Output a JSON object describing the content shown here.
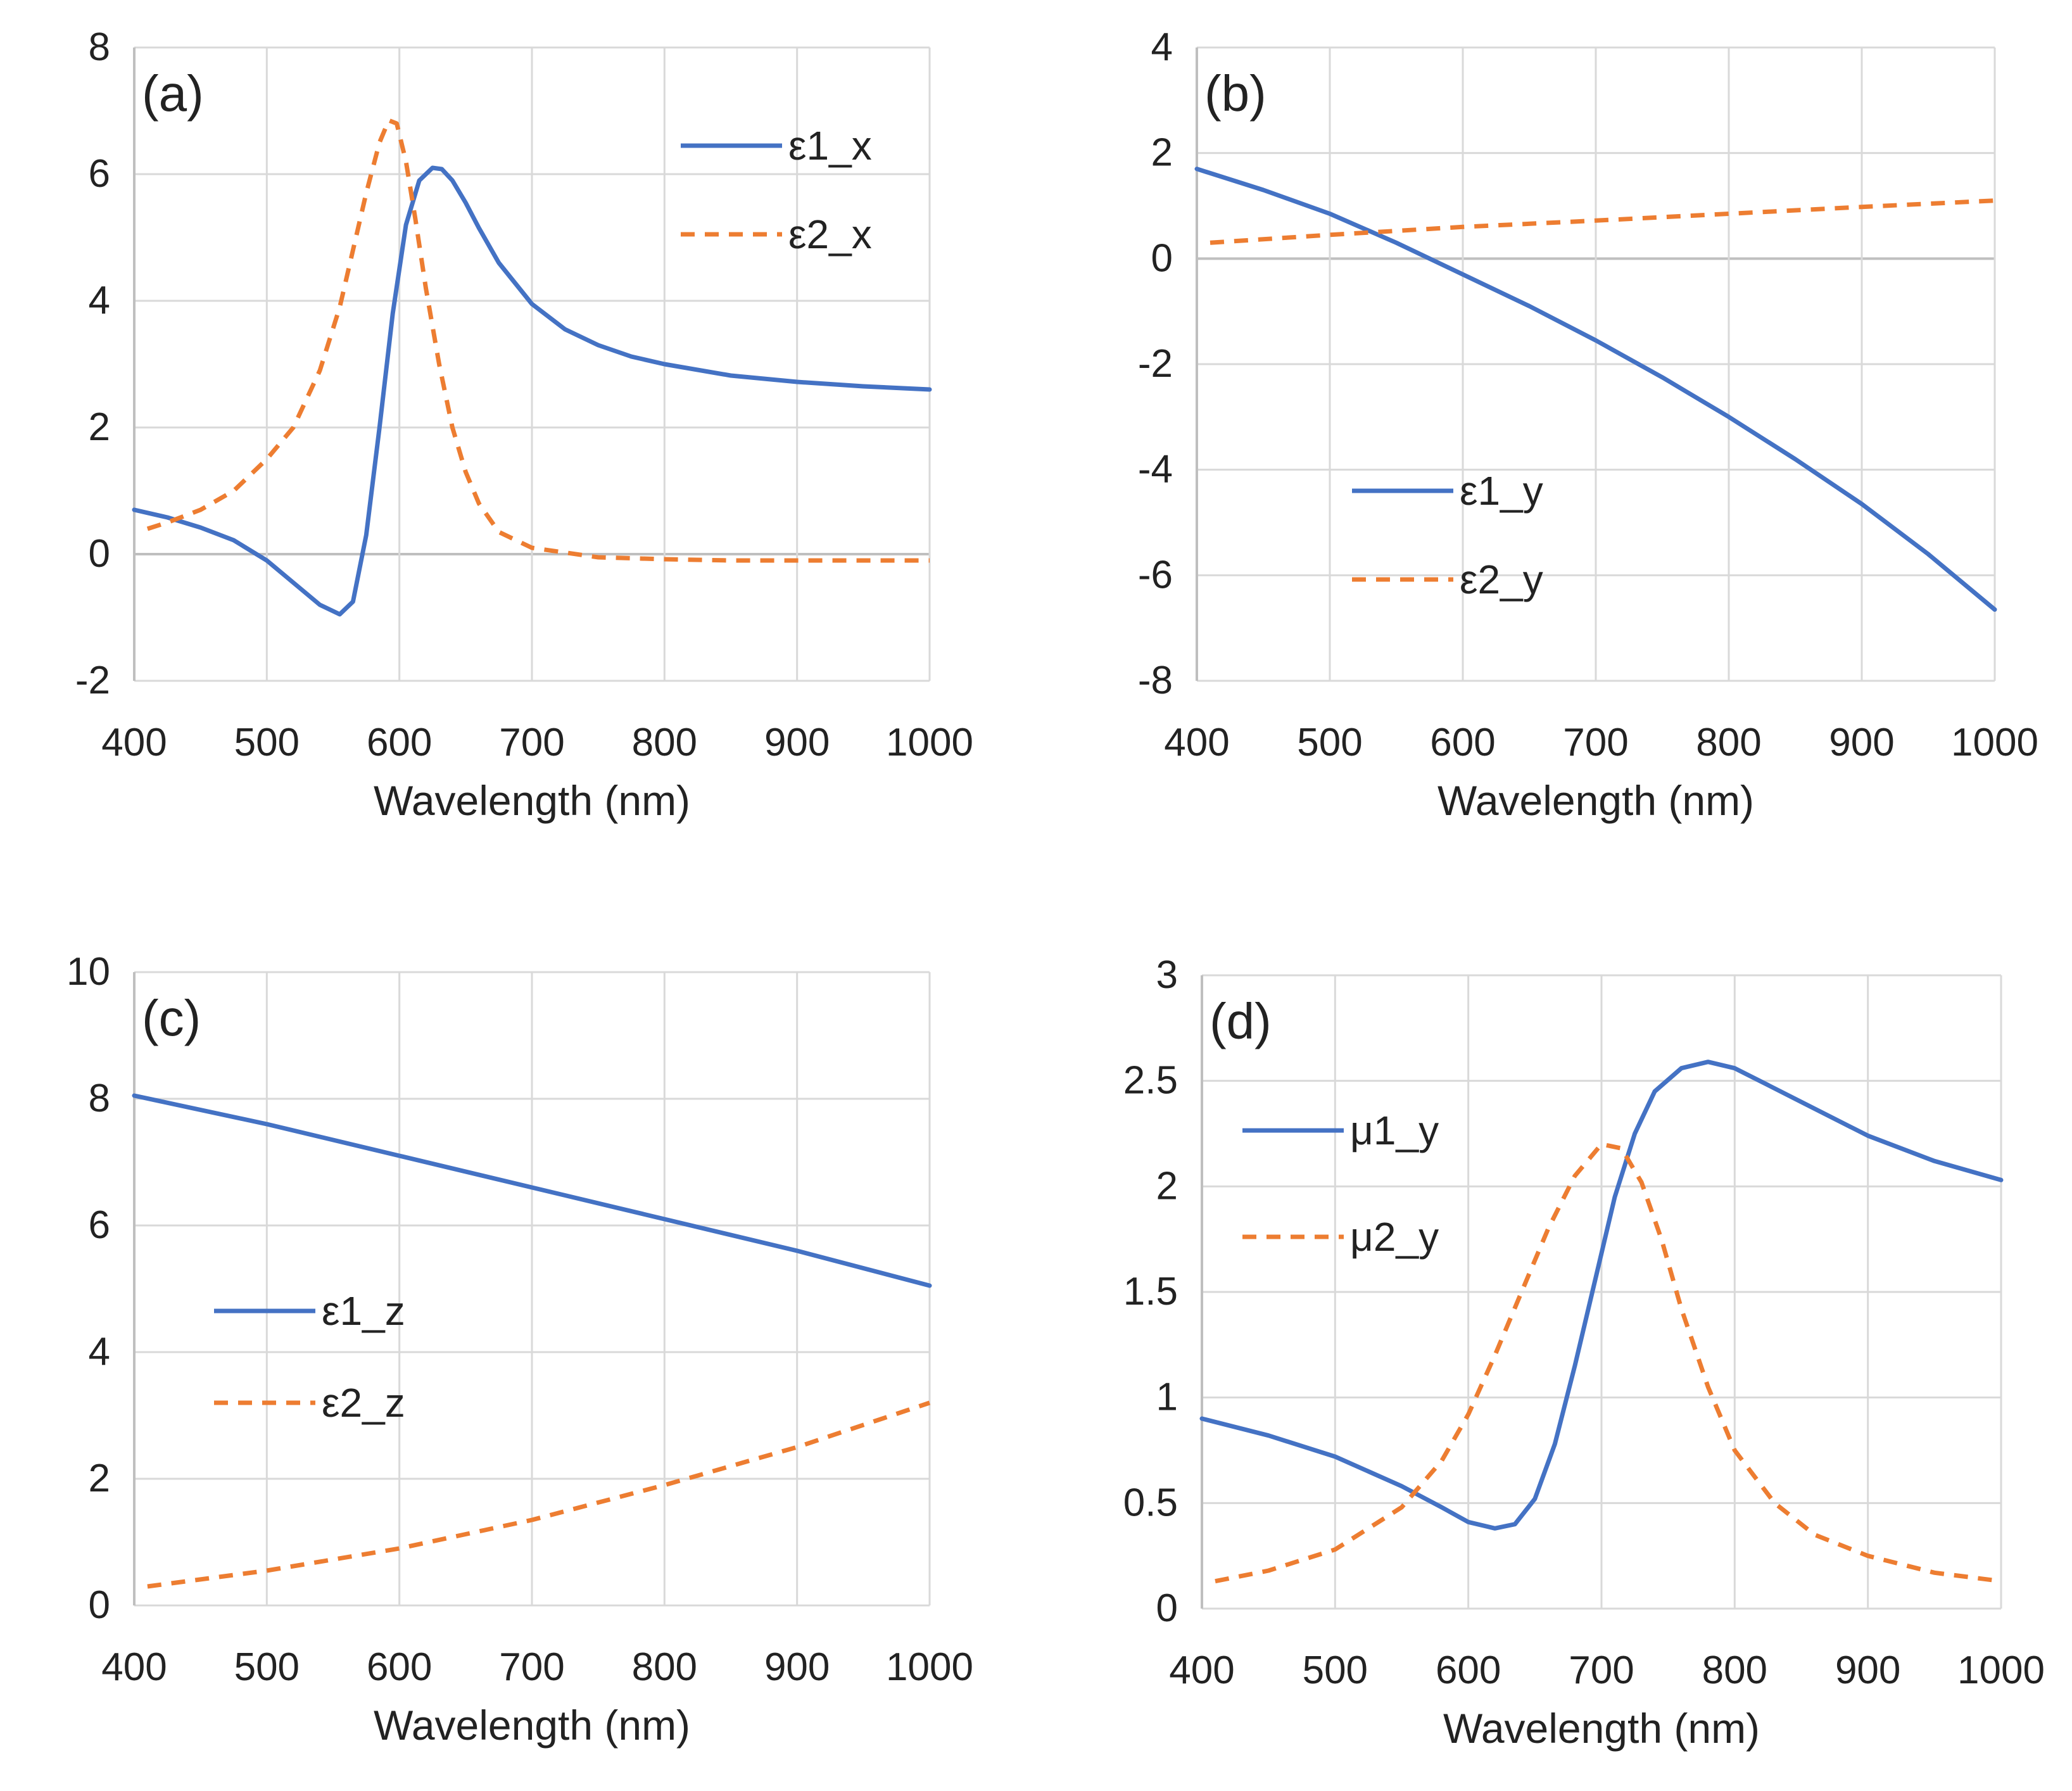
{
  "colors": {
    "series1": "#4472C4",
    "series2": "#ED7D31",
    "grid": "#D9D9D9",
    "text": "#222222"
  },
  "chart_data": [
    {
      "id": "a",
      "type": "line",
      "panel_label": "(a)",
      "xlabel": "Wavelength (nm)",
      "ylabel": "",
      "xlim": [
        400,
        1000
      ],
      "ylim": [
        -2,
        8
      ],
      "xticks": [
        400,
        500,
        600,
        700,
        800,
        900,
        1000
      ],
      "yticks": [
        -2,
        0,
        2,
        4,
        6,
        8
      ],
      "grid": true,
      "legend_position": "top-right",
      "series": [
        {
          "name": "ε1_x",
          "style": "solid",
          "x": [
            400,
            425,
            450,
            475,
            500,
            520,
            540,
            555,
            565,
            575,
            585,
            595,
            605,
            615,
            625,
            632,
            640,
            650,
            660,
            675,
            700,
            725,
            750,
            775,
            800,
            850,
            900,
            950,
            1000
          ],
          "y": [
            0.7,
            0.58,
            0.42,
            0.22,
            -0.1,
            -0.45,
            -0.8,
            -0.95,
            -0.75,
            0.3,
            2.0,
            3.8,
            5.2,
            5.9,
            6.1,
            6.08,
            5.9,
            5.55,
            5.15,
            4.6,
            3.95,
            3.55,
            3.3,
            3.12,
            3.0,
            2.82,
            2.72,
            2.65,
            2.6
          ]
        },
        {
          "name": "ε2_x",
          "style": "dashed",
          "x": [
            410,
            425,
            450,
            475,
            500,
            520,
            540,
            555,
            565,
            575,
            585,
            592,
            598,
            605,
            612,
            620,
            630,
            640,
            650,
            660,
            675,
            700,
            750,
            800,
            850,
            900,
            1000
          ],
          "y": [
            0.4,
            0.5,
            0.7,
            1.0,
            1.5,
            2.0,
            2.9,
            3.9,
            4.8,
            5.7,
            6.5,
            6.85,
            6.8,
            6.2,
            5.3,
            4.2,
            3.0,
            2.0,
            1.3,
            0.8,
            0.35,
            0.1,
            -0.05,
            -0.08,
            -0.1,
            -0.1,
            -0.1
          ]
        }
      ]
    },
    {
      "id": "b",
      "type": "line",
      "panel_label": "(b)",
      "xlabel": "Wavelength (nm)",
      "ylabel": "",
      "xlim": [
        400,
        1000
      ],
      "ylim": [
        -8,
        4
      ],
      "xticks": [
        400,
        500,
        600,
        700,
        800,
        900,
        1000
      ],
      "yticks": [
        -8,
        -6,
        -4,
        -2,
        0,
        2,
        4
      ],
      "grid": true,
      "legend_position": "center-left",
      "series": [
        {
          "name": "ε1_y",
          "style": "solid",
          "x": [
            400,
            450,
            500,
            550,
            600,
            650,
            700,
            750,
            800,
            850,
            900,
            950,
            1000
          ],
          "y": [
            1.7,
            1.3,
            0.85,
            0.3,
            -0.3,
            -0.9,
            -1.55,
            -2.25,
            -3.0,
            -3.8,
            -4.65,
            -5.6,
            -6.65
          ]
        },
        {
          "name": "ε2_y",
          "style": "dashed",
          "x": [
            410,
            500,
            600,
            700,
            800,
            900,
            1000
          ],
          "y": [
            0.3,
            0.45,
            0.6,
            0.72,
            0.85,
            0.98,
            1.1
          ]
        }
      ]
    },
    {
      "id": "c",
      "type": "line",
      "panel_label": "(c)",
      "xlabel": "Wavelength (nm)",
      "ylabel": "",
      "xlim": [
        400,
        1000
      ],
      "ylim": [
        0,
        10
      ],
      "xticks": [
        400,
        500,
        600,
        700,
        800,
        900,
        1000
      ],
      "yticks": [
        0,
        2,
        4,
        6,
        8,
        10
      ],
      "grid": true,
      "legend_position": "center-left",
      "series": [
        {
          "name": "ε1_z",
          "style": "solid",
          "x": [
            400,
            500,
            600,
            700,
            800,
            900,
            1000
          ],
          "y": [
            8.05,
            7.6,
            7.1,
            6.6,
            6.1,
            5.6,
            5.05
          ]
        },
        {
          "name": "ε2_z",
          "style": "dashed",
          "x": [
            410,
            500,
            600,
            700,
            800,
            900,
            1000
          ],
          "y": [
            0.3,
            0.55,
            0.9,
            1.35,
            1.9,
            2.5,
            3.2
          ]
        }
      ]
    },
    {
      "id": "d",
      "type": "line",
      "panel_label": "(d)",
      "xlabel": "Wavelength (nm)",
      "ylabel": "",
      "xlim": [
        400,
        1000
      ],
      "ylim": [
        0,
        3
      ],
      "xticks": [
        400,
        500,
        600,
        700,
        800,
        900,
        1000
      ],
      "yticks": [
        0,
        0.5,
        1,
        1.5,
        2,
        2.5,
        3
      ],
      "grid": true,
      "legend_position": "top-left",
      "series": [
        {
          "name": "μ1_y",
          "style": "solid",
          "x": [
            400,
            450,
            500,
            550,
            580,
            600,
            620,
            635,
            650,
            665,
            680,
            695,
            710,
            725,
            740,
            760,
            780,
            800,
            825,
            850,
            900,
            950,
            1000
          ],
          "y": [
            0.9,
            0.82,
            0.72,
            0.58,
            0.48,
            0.41,
            0.38,
            0.4,
            0.52,
            0.78,
            1.15,
            1.55,
            1.95,
            2.25,
            2.45,
            2.56,
            2.59,
            2.56,
            2.48,
            2.4,
            2.24,
            2.12,
            2.03
          ]
        },
        {
          "name": "μ2_y",
          "style": "dashed",
          "x": [
            410,
            450,
            500,
            550,
            580,
            600,
            620,
            640,
            660,
            680,
            700,
            715,
            730,
            745,
            760,
            780,
            800,
            830,
            860,
            900,
            950,
            1000
          ],
          "y": [
            0.13,
            0.18,
            0.28,
            0.48,
            0.7,
            0.92,
            1.2,
            1.5,
            1.8,
            2.05,
            2.2,
            2.18,
            2.02,
            1.75,
            1.42,
            1.05,
            0.75,
            0.5,
            0.35,
            0.25,
            0.17,
            0.13
          ]
        }
      ]
    }
  ]
}
